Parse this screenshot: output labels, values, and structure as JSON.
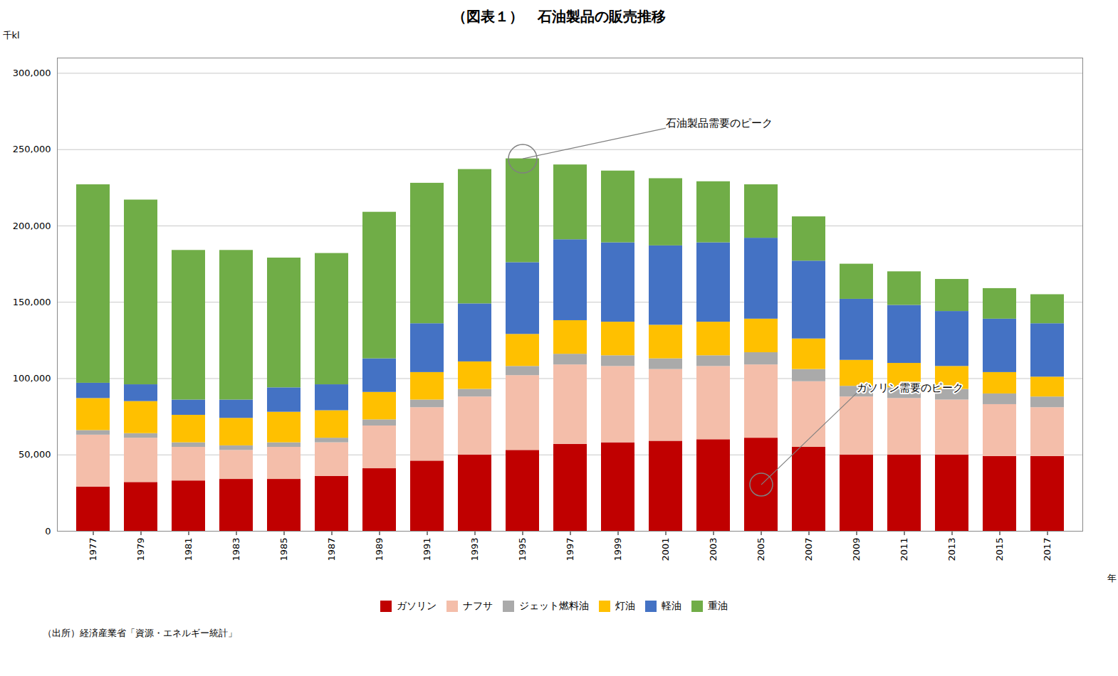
{
  "chart_data": {
    "type": "bar",
    "stacked": true,
    "title": "（図表１）　石油製品の販売推移",
    "xlabel": "年",
    "ylabel": "千kl",
    "caption": "（出所）経済産業省「資源・エネルギー統計」",
    "categories": [
      "1977",
      "1979",
      "1981",
      "1983",
      "1985",
      "1987",
      "1989",
      "1991",
      "1993",
      "1995",
      "1997",
      "1999",
      "2001",
      "2003",
      "2005",
      "2007",
      "2009",
      "2011",
      "2013",
      "2015",
      "2017"
    ],
    "series": [
      {
        "name": "ガソリン",
        "color": "#C00000",
        "values": [
          29000,
          32000,
          33000,
          34000,
          34000,
          36000,
          41000,
          46000,
          50000,
          53000,
          57000,
          58000,
          59000,
          60000,
          61000,
          55000,
          50000,
          50000,
          50000,
          49000,
          49000
        ]
      },
      {
        "name": "ナフサ",
        "color": "#F4BEAA",
        "values": [
          34000,
          29000,
          22000,
          19000,
          21000,
          22000,
          28000,
          35000,
          38000,
          49000,
          52000,
          50000,
          47000,
          48000,
          48000,
          43000,
          38000,
          37000,
          36000,
          34000,
          32000
        ]
      },
      {
        "name": "ジェット燃料油",
        "color": "#AAAAAA",
        "values": [
          3000,
          3000,
          3000,
          3000,
          3000,
          3000,
          4000,
          5000,
          5000,
          6000,
          7000,
          7000,
          7000,
          7000,
          8000,
          8000,
          7000,
          7000,
          7000,
          7000,
          7000
        ]
      },
      {
        "name": "灯油",
        "color": "#FFC000",
        "values": [
          21000,
          21000,
          18000,
          18000,
          20000,
          18000,
          18000,
          18000,
          18000,
          21000,
          22000,
          22000,
          22000,
          22000,
          22000,
          20000,
          17000,
          16000,
          15000,
          14000,
          13000
        ]
      },
      {
        "name": "軽油",
        "color": "#4472C4",
        "values": [
          10000,
          11000,
          10000,
          12000,
          16000,
          17000,
          22000,
          32000,
          38000,
          47000,
          53000,
          52000,
          52000,
          52000,
          53000,
          51000,
          40000,
          38000,
          36000,
          35000,
          35000
        ]
      },
      {
        "name": "重油",
        "color": "#70AD47",
        "values": [
          130000,
          121000,
          98000,
          98000,
          85000,
          86000,
          96000,
          92000,
          88000,
          68000,
          49000,
          47000,
          44000,
          40000,
          35000,
          29000,
          23000,
          22000,
          21000,
          20000,
          19000
        ]
      }
    ],
    "ylim": [
      0,
      310000
    ],
    "yticks": [
      0,
      {
        "value": 50000,
        "label": "50,000"
      },
      {
        "value": 100000,
        "label": "100,000"
      },
      {
        "value": 150000,
        "label": "150,000"
      },
      {
        "value": 200000,
        "label": "200,000"
      },
      {
        "value": 250000,
        "label": "250,000"
      },
      {
        "value": 300000,
        "label": "300,000"
      }
    ],
    "grid": true,
    "legend": "bottom",
    "annotations": [
      {
        "text": "石油製品需要のピーク",
        "x": "1995"
      },
      {
        "text": "ガソリン需要のピーク",
        "x": "2005",
        "series": "ガソリン"
      }
    ]
  }
}
